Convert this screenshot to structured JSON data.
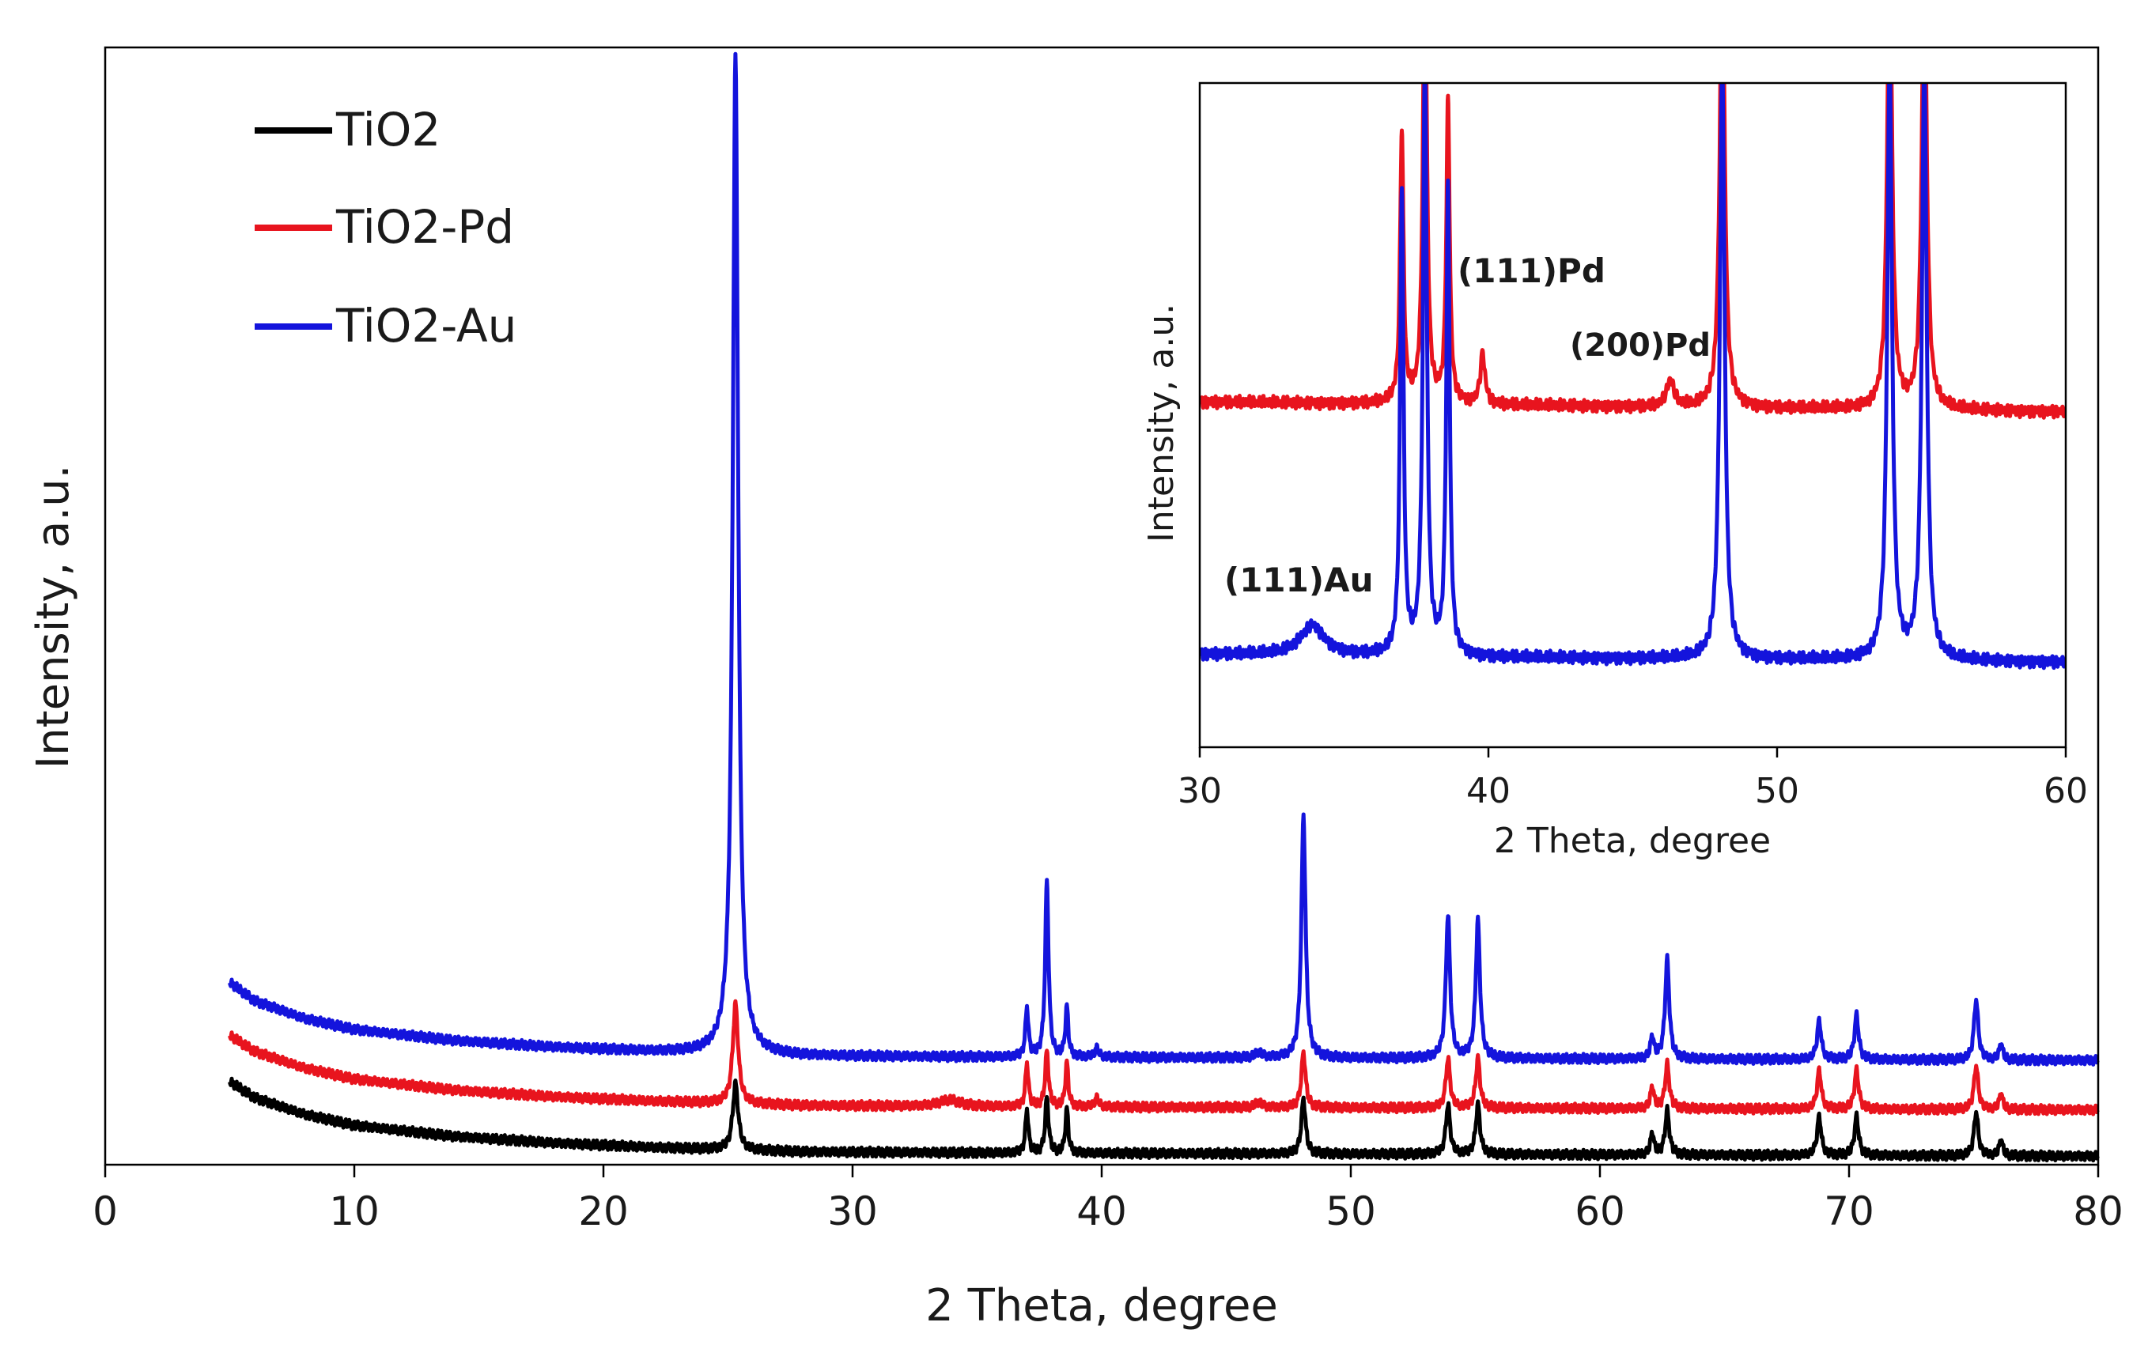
{
  "chart_data": [
    {
      "type": "line",
      "xlabel": "2 Theta, degree",
      "ylabel": "Intensity, a.u.",
      "xlim": [
        0,
        80
      ],
      "x_ticks": [
        0,
        10,
        20,
        30,
        40,
        50,
        60,
        70,
        80
      ],
      "legend_position": "top-left",
      "series": [
        {
          "name": "TiO2",
          "color": "#000000",
          "baseline": [
            [
              5,
              0.07
            ],
            [
              6,
              0.055
            ],
            [
              8,
              0.04
            ],
            [
              10,
              0.03
            ],
            [
              14,
              0.02
            ],
            [
              18,
              0.014
            ],
            [
              22,
              0.01
            ],
            [
              25,
              0.008
            ],
            [
              28,
              0.006
            ],
            [
              35,
              0.005
            ],
            [
              50,
              0.004
            ],
            [
              65,
              0.003
            ],
            [
              80,
              0.002
            ]
          ],
          "peaks": [
            [
              25.3,
              0.06,
              0.13
            ],
            [
              37.0,
              0.04,
              0.07
            ],
            [
              37.8,
              0.05,
              0.08
            ],
            [
              38.6,
              0.04,
              0.07
            ],
            [
              48.1,
              0.05,
              0.1
            ],
            [
              53.9,
              0.045,
              0.1
            ],
            [
              55.1,
              0.045,
              0.1
            ],
            [
              62.1,
              0.02,
              0.08
            ],
            [
              62.7,
              0.04,
              0.1
            ],
            [
              68.8,
              0.035,
              0.1
            ],
            [
              70.3,
              0.035,
              0.1
            ],
            [
              75.1,
              0.04,
              0.1
            ],
            [
              76.1,
              0.015,
              0.08
            ]
          ]
        },
        {
          "name": "TiO2-Pd",
          "color": "#e8141e",
          "baseline": [
            [
              5,
              0.112
            ],
            [
              6,
              0.097
            ],
            [
              8,
              0.082
            ],
            [
              10,
              0.072
            ],
            [
              14,
              0.062
            ],
            [
              18,
              0.056
            ],
            [
              22,
              0.052
            ],
            [
              25,
              0.05
            ],
            [
              28,
              0.048
            ],
            [
              35,
              0.047
            ],
            [
              50,
              0.046
            ],
            [
              65,
              0.045
            ],
            [
              80,
              0.044
            ]
          ],
          "peaks": [
            [
              25.3,
              0.09,
              0.13
            ],
            [
              33.9,
              0.006,
              0.5
            ],
            [
              37.0,
              0.04,
              0.07
            ],
            [
              37.8,
              0.05,
              0.08
            ],
            [
              38.6,
              0.04,
              0.07
            ],
            [
              39.8,
              0.008,
              0.1
            ],
            [
              46.3,
              0.005,
              0.15
            ],
            [
              48.1,
              0.05,
              0.1
            ],
            [
              53.9,
              0.045,
              0.1
            ],
            [
              55.1,
              0.045,
              0.1
            ],
            [
              62.1,
              0.02,
              0.08
            ],
            [
              62.7,
              0.04,
              0.1
            ],
            [
              68.8,
              0.035,
              0.1
            ],
            [
              70.3,
              0.035,
              0.1
            ],
            [
              75.1,
              0.04,
              0.1
            ],
            [
              76.1,
              0.015,
              0.08
            ]
          ]
        },
        {
          "name": "TiO2-Au",
          "color": "#1414dc",
          "baseline": [
            [
              5,
              0.16
            ],
            [
              6,
              0.143
            ],
            [
              8,
              0.127
            ],
            [
              10,
              0.117
            ],
            [
              14,
              0.107
            ],
            [
              18,
              0.101
            ],
            [
              22,
              0.097
            ],
            [
              25,
              0.095
            ],
            [
              28,
              0.093
            ],
            [
              35,
              0.092
            ],
            [
              50,
              0.091
            ],
            [
              65,
              0.09
            ],
            [
              80,
              0.089
            ]
          ],
          "peaks": [
            [
              25.3,
              0.905,
              0.13
            ],
            [
              37.0,
              0.045,
              0.07
            ],
            [
              37.8,
              0.16,
              0.08
            ],
            [
              38.6,
              0.045,
              0.07
            ],
            [
              39.8,
              0.008,
              0.1
            ],
            [
              46.3,
              0.005,
              0.15
            ],
            [
              48.1,
              0.22,
              0.1
            ],
            [
              53.9,
              0.13,
              0.1
            ],
            [
              55.1,
              0.125,
              0.1
            ],
            [
              62.1,
              0.02,
              0.08
            ],
            [
              62.7,
              0.09,
              0.1
            ],
            [
              68.8,
              0.035,
              0.1
            ],
            [
              70.3,
              0.04,
              0.1
            ],
            [
              75.1,
              0.055,
              0.1
            ],
            [
              76.1,
              0.015,
              0.08
            ]
          ]
        }
      ]
    },
    {
      "type": "line",
      "subtitle": "inset",
      "xlabel": "2 Theta, degree",
      "ylabel": "Intensity, a.u.",
      "xlim": [
        30,
        60
      ],
      "x_ticks": [
        30,
        40,
        50,
        60
      ],
      "annotations": [
        {
          "text": "(111)Pd",
          "x": 39.0,
          "series": "TiO2-Pd"
        },
        {
          "text": "(200)Pd",
          "x": 46.3,
          "series": "TiO2-Pd"
        },
        {
          "text": "(111)Au",
          "x": 33.9,
          "series": "TiO2-Au"
        }
      ],
      "series": [
        {
          "name": "TiO2-Pd",
          "color": "#e8141e",
          "baseline": [
            [
              30,
              0.52
            ],
            [
              40,
              0.515
            ],
            [
              50,
              0.51
            ],
            [
              60,
              0.505
            ]
          ],
          "peaks": [
            [
              37.0,
              0.41,
              0.07
            ],
            [
              37.8,
              0.7,
              0.08
            ],
            [
              38.6,
              0.45,
              0.07
            ],
            [
              39.8,
              0.075,
              0.1
            ],
            [
              46.3,
              0.04,
              0.15
            ],
            [
              48.1,
              0.7,
              0.1
            ],
            [
              53.9,
              0.7,
              0.1
            ],
            [
              55.1,
              0.7,
              0.1
            ]
          ]
        },
        {
          "name": "TiO2-Au",
          "color": "#1414dc",
          "baseline": [
            [
              30,
              0.14
            ],
            [
              40,
              0.135
            ],
            [
              50,
              0.132
            ],
            [
              60,
              0.128
            ]
          ],
          "peaks": [
            [
              33.9,
              0.045,
              0.5
            ],
            [
              37.0,
              0.7,
              0.07
            ],
            [
              37.8,
              0.9,
              0.08
            ],
            [
              38.6,
              0.7,
              0.07
            ],
            [
              48.1,
              0.9,
              0.1
            ],
            [
              53.9,
              0.9,
              0.1
            ],
            [
              55.1,
              0.9,
              0.1
            ]
          ]
        }
      ]
    }
  ]
}
